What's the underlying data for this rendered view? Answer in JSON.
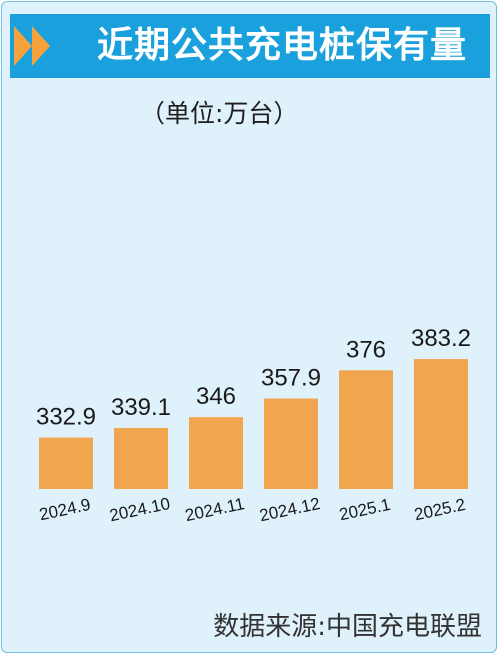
{
  "title": "近期公共充电桩保有量",
  "unit": "（单位:万台）",
  "source": "数据来源:中国充电联盟",
  "colors": {
    "banner": "#1aa1dd",
    "arrow": "#f6a23b",
    "bar": "#f2a54f",
    "background": "#dff1fb"
  },
  "chart_data": {
    "type": "bar",
    "categories": [
      "2024.9",
      "2024.10",
      "2024.11",
      "2024.12",
      "2025.1",
      "2025.2"
    ],
    "values": [
      332.9,
      339.1,
      346,
      357.9,
      376,
      383.2
    ],
    "value_labels": [
      "332.9",
      "339.1",
      "346",
      "357.9",
      "376",
      "383.2"
    ],
    "title": "近期公共充电桩保有量",
    "ylabel": "",
    "xlabel": "",
    "grid": false
  }
}
